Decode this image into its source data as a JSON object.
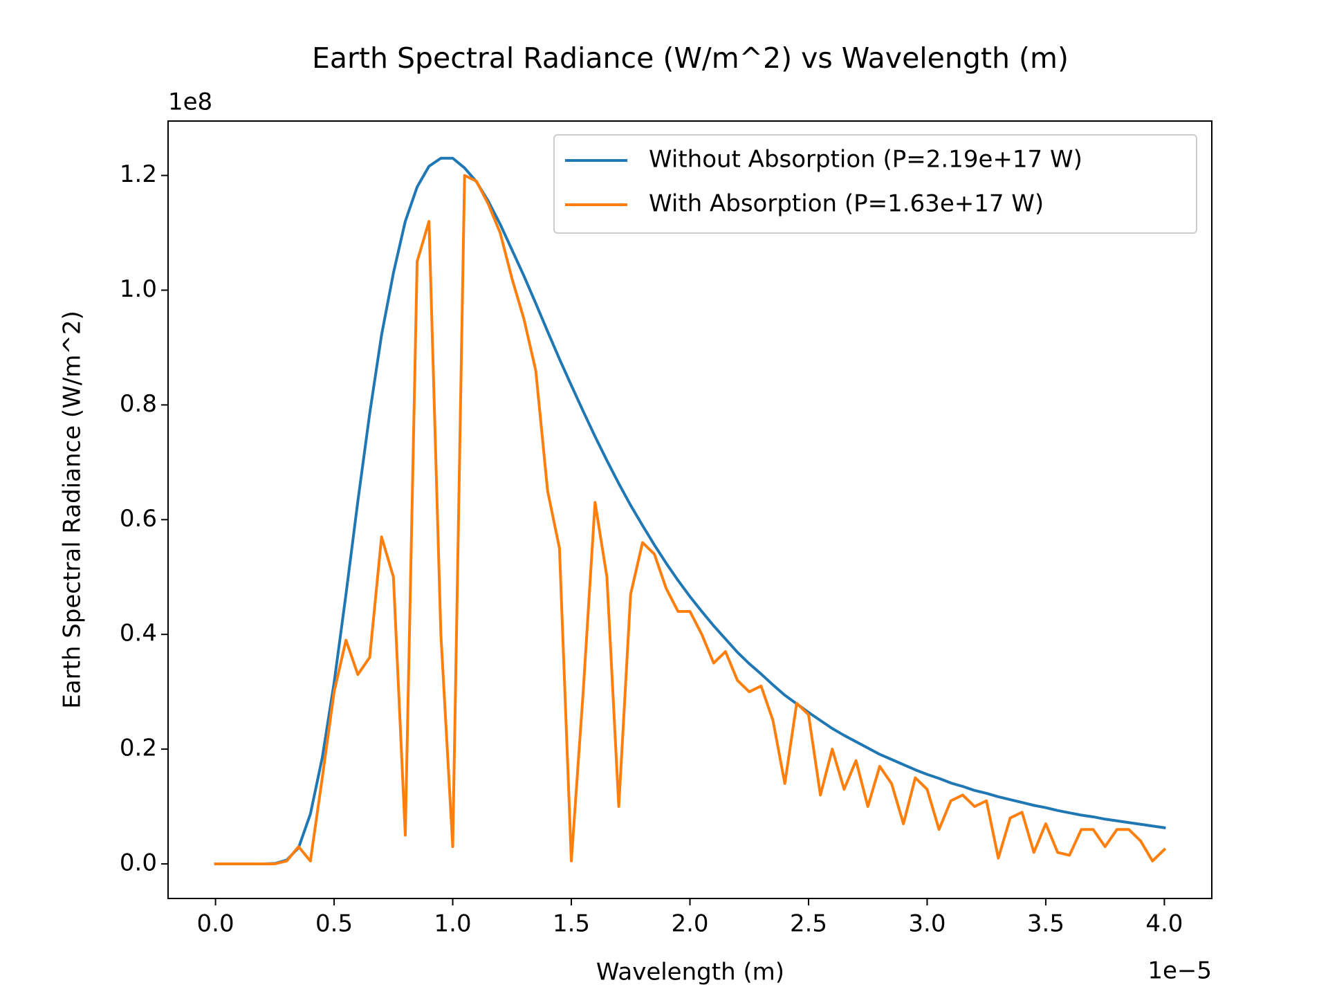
{
  "chart_data": {
    "type": "line",
    "title": "Earth Spectral Radiance (W/m^2) vs Wavelength (m)",
    "x_label": "Wavelength (m)",
    "y_label": "Earth Spectral Radiance (W/m^2)",
    "x_offset_label": "1e−5",
    "y_offset_label": "1e8",
    "legend": "upper right",
    "grid": false,
    "xlim": [
      -2e-06,
      4.2e-05
    ],
    "ylim": [
      -6030000.0,
      129480000.0
    ],
    "xticks": [
      {
        "value": 0,
        "label": "0.0"
      },
      {
        "value": 5e-06,
        "label": "0.5"
      },
      {
        "value": 1e-05,
        "label": "1.0"
      },
      {
        "value": 1.5e-05,
        "label": "1.5"
      },
      {
        "value": 2e-05,
        "label": "2.0"
      },
      {
        "value": 2.5e-05,
        "label": "2.5"
      },
      {
        "value": 3e-05,
        "label": "3.0"
      },
      {
        "value": 3.5e-05,
        "label": "3.5"
      },
      {
        "value": 4e-05,
        "label": "4.0"
      }
    ],
    "yticks": [
      {
        "value": 0,
        "label": "0.0"
      },
      {
        "value": 20000000.0,
        "label": "0.2"
      },
      {
        "value": 40000000.0,
        "label": "0.4"
      },
      {
        "value": 60000000.0,
        "label": "0.6"
      },
      {
        "value": 80000000.0,
        "label": "0.8"
      },
      {
        "value": 100000000.0,
        "label": "1.0"
      },
      {
        "value": 120000000.0,
        "label": "1.2"
      }
    ],
    "x": [
      0,
      5e-07,
      1e-06,
      1.5e-06,
      2e-06,
      2.5e-06,
      3e-06,
      3.5e-06,
      4e-06,
      4.5e-06,
      5e-06,
      5.5e-06,
      6e-06,
      6.5e-06,
      7e-06,
      7.5e-06,
      8e-06,
      8.5e-06,
      9e-06,
      9.5e-06,
      1e-05,
      1.05e-05,
      1.1e-05,
      1.15e-05,
      1.2e-05,
      1.25e-05,
      1.3e-05,
      1.35e-05,
      1.4e-05,
      1.45e-05,
      1.5e-05,
      1.55e-05,
      1.6e-05,
      1.65e-05,
      1.7e-05,
      1.75e-05,
      1.8e-05,
      1.85e-05,
      1.9e-05,
      1.95e-05,
      2e-05,
      2.05e-05,
      2.1e-05,
      2.15e-05,
      2.2e-05,
      2.25e-05,
      2.3e-05,
      2.35e-05,
      2.4e-05,
      2.45e-05,
      2.5e-05,
      2.55e-05,
      2.6e-05,
      2.65e-05,
      2.7e-05,
      2.75e-05,
      2.8e-05,
      2.85e-05,
      2.9e-05,
      2.95e-05,
      3e-05,
      3.05e-05,
      3.1e-05,
      3.15e-05,
      3.2e-05,
      3.25e-05,
      3.3e-05,
      3.35e-05,
      3.4e-05,
      3.45e-05,
      3.5e-05,
      3.55e-05,
      3.6e-05,
      3.65e-05,
      3.7e-05,
      3.75e-05,
      3.8e-05,
      3.85e-05,
      3.9e-05,
      3.95e-05,
      4e-05
    ],
    "series": [
      {
        "name": "Without Absorption (P=2.19e+17 W)",
        "color": "#1f77b4",
        "values": [
          0,
          0,
          0,
          0,
          0,
          70000.0,
          660000.0,
          2800000.0,
          8700000.0,
          18500000.0,
          31600000.0,
          47000000.0,
          63200000.0,
          78500000.0,
          92200000.0,
          103000000.0,
          112000000.0,
          118000000.0,
          121600000.0,
          123000000.0,
          123000000.0,
          121300000.0,
          118900000.0,
          115500000.0,
          111500000.0,
          107000000.0,
          102500000.0,
          97700000.0,
          92800000.0,
          88000000.0,
          83400000.0,
          78900000.0,
          74500000.0,
          70300000.0,
          66300000.0,
          62500000.0,
          59000000.0,
          55600000.0,
          52400000.0,
          49400000.0,
          46600000.0,
          44000000.0,
          41500000.0,
          39200000.0,
          36900000.0,
          34900000.0,
          33100000.0,
          31200000.0,
          29400000.0,
          27900000.0,
          26400000.0,
          25000000.0,
          23600000.0,
          22400000.0,
          21300000.0,
          20200000.0,
          19100000.0,
          18200000.0,
          17300000.0,
          16400000.0,
          15600000.0,
          14900000.0,
          14100000.0,
          13500000.0,
          12800000.0,
          12300000.0,
          11700000.0,
          11200000.0,
          10700000.0,
          10200000.0,
          9800000.0,
          9300000.0,
          8900000.0,
          8500000.0,
          8200000.0,
          7800000.0,
          7500000.0,
          7200000.0,
          6900000.0,
          6600000.0,
          6300000.0
        ]
      },
      {
        "name": "With Absorption (P=1.63e+17 W)",
        "color": "#ff7f0e",
        "values": [
          0,
          0,
          0,
          0,
          0,
          0,
          500000.0,
          3000000.0,
          500000.0,
          15000000.0,
          30000000.0,
          39000000.0,
          33000000.0,
          36000000.0,
          57000000.0,
          50000000.0,
          5000000.0,
          105000000.0,
          112000000.0,
          40000000.0,
          3000000.0,
          120000000.0,
          119000000.0,
          115000000.0,
          110000000.0,
          102000000.0,
          95000000.0,
          86000000.0,
          65000000.0,
          55000000.0,
          500000.0,
          30000000.0,
          63000000.0,
          50000000.0,
          10000000.0,
          47000000.0,
          56000000.0,
          54000000.0,
          48000000.0,
          44000000.0,
          44000000.0,
          40000000.0,
          35000000.0,
          37000000.0,
          32000000.0,
          30000000.0,
          31000000.0,
          25000000.0,
          14000000.0,
          28000000.0,
          26000000.0,
          12000000.0,
          20000000.0,
          13000000.0,
          18000000.0,
          10000000.0,
          17000000.0,
          14000000.0,
          7000000.0,
          15000000.0,
          13000000.0,
          6000000.0,
          11000000.0,
          12000000.0,
          10000000.0,
          11000000.0,
          1000000.0,
          8000000.0,
          9000000.0,
          2000000.0,
          7000000.0,
          2000000.0,
          1500000.0,
          6000000.0,
          6000000.0,
          3000000.0,
          6000000.0,
          6000000.0,
          4000000.0,
          500000.0,
          2500000.0
        ]
      }
    ]
  }
}
